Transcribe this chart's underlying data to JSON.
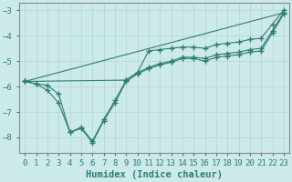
{
  "xlabel": "Humidex (Indice chaleur)",
  "xlim": [
    -0.5,
    23.5
  ],
  "ylim": [
    -8.6,
    -2.7
  ],
  "bg_color": "#cceaea",
  "grid_color": "#b8d8d8",
  "line_color": "#2e7d72",
  "line1_x": [
    0,
    1,
    2,
    3,
    4,
    5,
    6,
    7,
    8,
    9,
    10,
    11,
    12,
    13,
    14,
    15,
    16,
    17,
    18,
    19,
    20,
    21,
    22,
    23
  ],
  "line1_y": [
    -5.8,
    -5.9,
    -5.95,
    -6.3,
    -7.8,
    -7.6,
    -8.15,
    -7.3,
    -6.55,
    -5.75,
    -5.45,
    -5.25,
    -5.1,
    -5.0,
    -4.85,
    -4.85,
    -4.9,
    -4.75,
    -4.7,
    -4.65,
    -4.55,
    -4.5,
    -3.8,
    -3.1
  ],
  "line2_x": [
    0,
    1,
    2,
    3,
    4,
    5,
    6,
    7,
    8,
    9,
    10,
    11,
    12,
    13,
    14,
    15,
    16,
    17,
    18,
    19,
    20,
    21,
    22,
    23
  ],
  "line2_y": [
    -5.8,
    -5.9,
    -6.15,
    -6.65,
    -7.8,
    -7.65,
    -8.2,
    -7.35,
    -6.65,
    -5.8,
    -5.5,
    -5.3,
    -5.15,
    -5.05,
    -4.9,
    -4.9,
    -5.0,
    -4.85,
    -4.8,
    -4.75,
    -4.65,
    -4.6,
    -3.9,
    -3.15
  ],
  "line3_x": [
    0,
    23
  ],
  "line3_y": [
    -5.8,
    -3.1
  ],
  "line4_x": [
    0,
    9,
    10,
    11,
    12,
    13,
    14,
    15,
    16,
    17,
    18,
    19,
    20,
    21,
    22,
    23
  ],
  "line4_y": [
    -5.8,
    -5.75,
    -5.45,
    -4.6,
    -4.55,
    -4.5,
    -4.45,
    -4.45,
    -4.5,
    -4.35,
    -4.3,
    -4.25,
    -4.15,
    -4.1,
    -3.55,
    -3.0
  ],
  "xticks": [
    0,
    1,
    2,
    3,
    4,
    5,
    6,
    7,
    8,
    9,
    10,
    11,
    12,
    13,
    14,
    15,
    16,
    17,
    18,
    19,
    20,
    21,
    22,
    23
  ],
  "yticks": [
    -8,
    -7,
    -6,
    -5,
    -4,
    -3
  ],
  "tick_fontsize": 6.5,
  "label_fontsize": 7.5
}
